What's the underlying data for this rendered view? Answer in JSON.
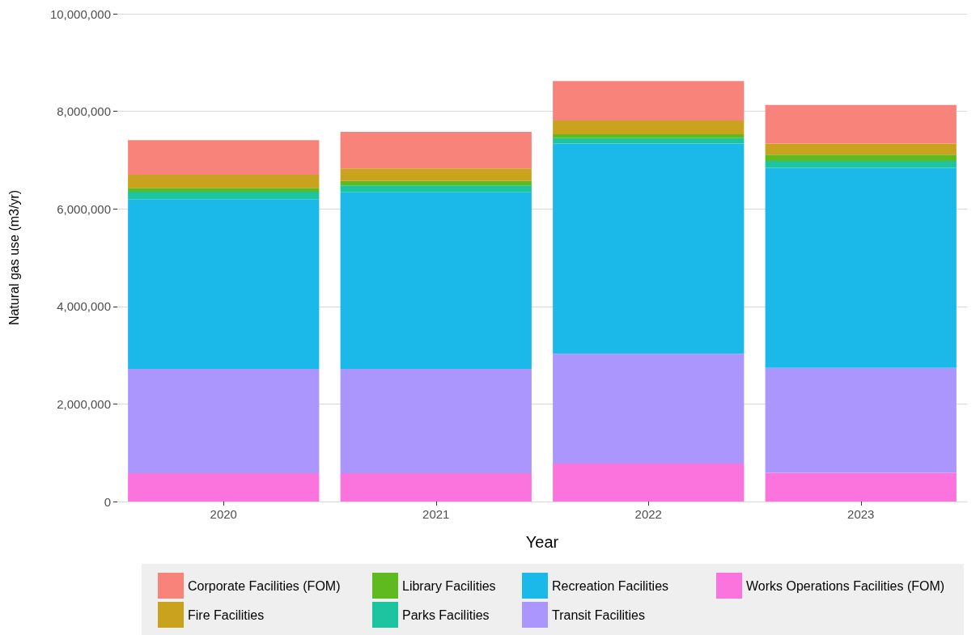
{
  "chart_data": {
    "type": "bar",
    "stacked": true,
    "xlabel": "Year",
    "ylabel": "Natural gas use (m3/yr)",
    "categories": [
      "2020",
      "2021",
      "2022",
      "2023"
    ],
    "series": [
      {
        "name": "Works Operations Facilities (FOM)",
        "color": "#fb73dc",
        "values": [
          580000,
          580000,
          780000,
          590000
        ]
      },
      {
        "name": "Transit Facilities",
        "color": "#ab96fd",
        "values": [
          2140000,
          2140000,
          2250000,
          2150000
        ]
      },
      {
        "name": "Recreation Facilities",
        "color": "#1bb9e9",
        "values": [
          3480000,
          3620000,
          4310000,
          4100000
        ]
      },
      {
        "name": "Parks Facilities",
        "color": "#1cc59f",
        "values": [
          150000,
          140000,
          110000,
          140000
        ]
      },
      {
        "name": "Library Facilities",
        "color": "#5fba1f",
        "values": [
          80000,
          90000,
          80000,
          130000
        ]
      },
      {
        "name": "Fire Facilities",
        "color": "#c9a31d",
        "values": [
          270000,
          260000,
          280000,
          230000
        ]
      },
      {
        "name": "Corporate Facilities (FOM)",
        "color": "#f8837b",
        "values": [
          710000,
          750000,
          810000,
          790000
        ]
      }
    ],
    "ylim": [
      0,
      10000000
    ],
    "yticks": [
      0,
      {
        "value": 2000000,
        "label": "2,000,000"
      },
      {
        "value": 4000000,
        "label": "4,000,000"
      },
      {
        "value": 6000000,
        "label": "6,000,000"
      },
      {
        "value": 8000000,
        "label": "8,000,000"
      },
      {
        "value": 10000000,
        "label": "10,000,000"
      }
    ],
    "grid": "y",
    "legend": "bottom"
  }
}
